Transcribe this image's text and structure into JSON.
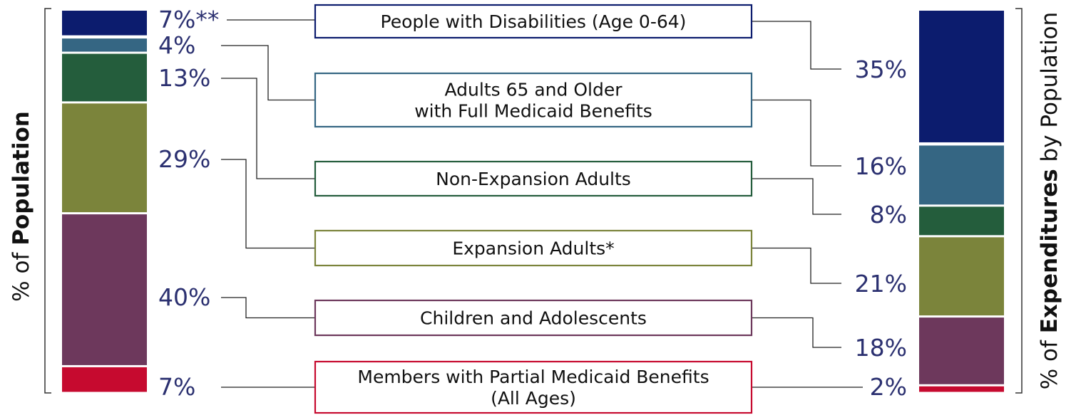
{
  "chart_data": {
    "type": "stacked-bar",
    "left_axis": {
      "label_prefix": "% of ",
      "label_bold": "Population",
      "label_suffix": ""
    },
    "right_axis": {
      "label_prefix": "% of ",
      "label_bold": "Expenditures",
      "label_suffix": " by Population"
    },
    "categories": [
      "People with Disabilities (Age 0-64)",
      "Adults 65 and Older with Full Medicaid Benefits",
      "Non-Expansion Adults",
      "Expansion Adults*",
      "Children and Adolescents",
      "Members with Partial Medicaid Benefits (All Ages)"
    ],
    "category_lines": [
      [
        "People with Disabilities (Age 0-64)"
      ],
      [
        "Adults 65 and Older",
        "with Full Medicaid Benefits"
      ],
      [
        "Non-Expansion Adults"
      ],
      [
        "Expansion Adults*"
      ],
      [
        "Children and Adolescents"
      ],
      [
        "Members with Partial Medicaid Benefits",
        "(All Ages)"
      ]
    ],
    "colors": [
      "#0c1c6e",
      "#356683",
      "#245d3c",
      "#7b843b",
      "#6d385c",
      "#c60a2f"
    ],
    "series": [
      {
        "name": "% of Population",
        "values": [
          7,
          4,
          13,
          29,
          40,
          7
        ],
        "labels": [
          "7%**",
          "4%",
          "13%",
          "29%",
          "40%",
          "7%"
        ]
      },
      {
        "name": "% of Expenditures by Population",
        "values": [
          35,
          16,
          8,
          21,
          18,
          2
        ],
        "labels": [
          "35%",
          "16%",
          "8%",
          "21%",
          "18%",
          "2%"
        ]
      }
    ],
    "label_color": "#2b3070"
  }
}
